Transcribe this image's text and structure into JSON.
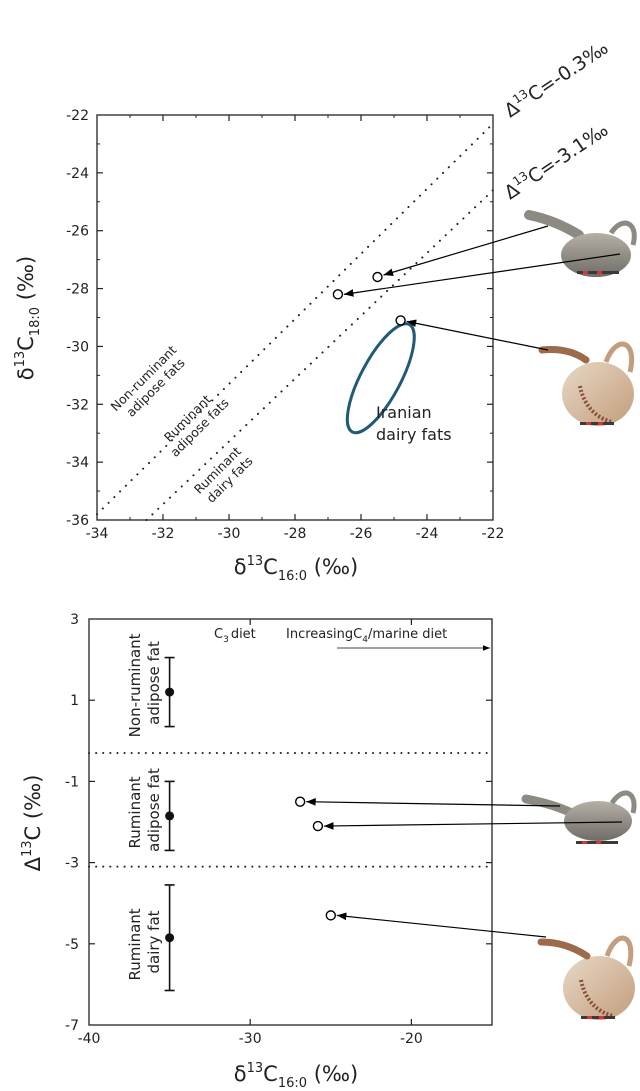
{
  "chart_data": [
    {
      "type": "scatter",
      "xlim": [
        -34,
        -22
      ],
      "ylim": [
        -36,
        -22
      ],
      "xticks": [
        -34,
        -32,
        -30,
        -28,
        -26,
        -24,
        -22
      ],
      "yticks": [
        -22,
        -24,
        -26,
        -28,
        -30,
        -32,
        -34,
        -36
      ],
      "xticklabels": [
        "-34",
        "-32",
        "-30",
        "-28",
        "-26",
        "-24",
        "-22"
      ],
      "yticklabels": [
        "-22",
        "-24",
        "-26",
        "-28",
        "-30",
        "-32",
        "-34",
        "-36"
      ],
      "xlabel": {
        "main": "δ",
        "sup": "13",
        "c": "C",
        "sub": "16:0",
        "unit": " (‰)"
      },
      "ylabel": {
        "main": "δ",
        "sup": "13",
        "c": "C",
        "sub": "18:0",
        "unit": " (‰)"
      },
      "points": [
        {
          "x": -25.5,
          "y": -27.6
        },
        {
          "x": -26.7,
          "y": -28.2
        },
        {
          "x": -24.8,
          "y": -29.1
        }
      ],
      "reference_lines": [
        {
          "label": "Δ13C=-0.3‰",
          "label_display": {
            "pre": "Δ",
            "sup": "13",
            "post": "C=-0.3‰"
          },
          "x": [
            -34,
            -22
          ],
          "y": [
            -35.8,
            -22.3
          ]
        },
        {
          "label": "Δ13C=-3.1‰",
          "label_display": {
            "pre": "Δ",
            "sup": "13",
            "post": "C=-3.1‰"
          },
          "x": [
            -32.5,
            -22
          ],
          "y": [
            -36,
            -24.6
          ]
        }
      ],
      "regions": [
        {
          "lines": [
            "Non-ruminant",
            "adipose fats"
          ]
        },
        {
          "lines": [
            "Ruminant",
            "adipose fats"
          ]
        },
        {
          "lines": [
            "Ruminant",
            "dairy fats"
          ]
        }
      ],
      "ellipse": {
        "label_lines": [
          "Iranian",
          "dairy fats"
        ],
        "cx": -25.4,
        "cy": -31.1,
        "rx": 2.1,
        "ry": 0.6,
        "angle_deg": 62,
        "color": "#1f5a78"
      },
      "point_color": "#000000"
    },
    {
      "type": "scatter",
      "xlim": [
        -40,
        -15
      ],
      "ylim": [
        -7,
        3
      ],
      "xticks": [
        -40,
        -30,
        -20
      ],
      "yticks": [
        3,
        1,
        -1,
        -3,
        -5,
        -7
      ],
      "xticklabels": [
        "-40",
        "-30",
        "-20"
      ],
      "yticklabels": [
        "3",
        "1",
        "-1",
        "-3",
        "-5",
        "-7"
      ],
      "xlabel": {
        "main": "δ",
        "sup": "13",
        "c": "C",
        "sub": "16:0",
        "unit": " (‰)"
      },
      "ylabel": {
        "main": "Δ",
        "sup": "13",
        "c": "C",
        "unit": " (‰)"
      },
      "points": [
        {
          "x": -26.9,
          "y": -1.5
        },
        {
          "x": -25.8,
          "y": -2.1
        },
        {
          "x": -25.0,
          "y": -4.3
        }
      ],
      "reference_points": [
        {
          "x": -35,
          "y": 1.2,
          "yerr": 0.85
        },
        {
          "x": -35,
          "y": -1.85,
          "yerr": 0.85
        },
        {
          "x": -35,
          "y": -4.85,
          "yerr": 1.3
        }
      ],
      "hlines": [
        -0.3,
        -3.1
      ],
      "regions": [
        {
          "lines": [
            "Non-ruminant",
            "adipose fat"
          ]
        },
        {
          "lines": [
            "Ruminant",
            "adipose fat"
          ]
        },
        {
          "lines": [
            "Ruminant",
            "dairy fat"
          ]
        }
      ],
      "annotations": {
        "c3": {
          "pre": "C",
          "sub": "3",
          "post": "diet"
        },
        "c4": {
          "pre": "IncreasingC",
          "sub": "4",
          "post": "/marine diet"
        }
      }
    }
  ]
}
